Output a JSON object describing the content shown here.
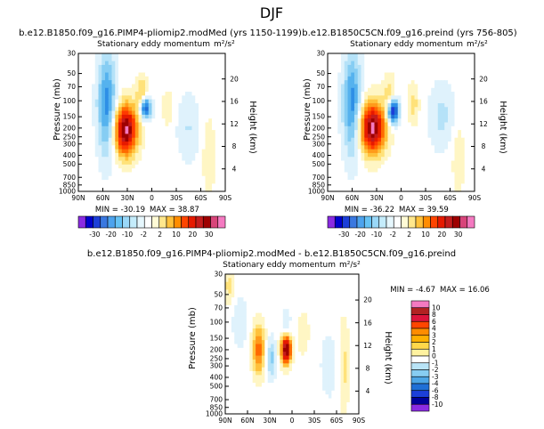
{
  "page_title": "DJF",
  "chart_data": [
    {
      "type": "heatmap",
      "id": "p1",
      "title": "b.e12.B1850.f09_g16.PIMP4-pliomip2.modMed (yrs 1150-1199)",
      "subtitle": "Stationary eddy momentum",
      "units": "m²/s²",
      "xlabel": "",
      "ylabel": "Pressure (mb)",
      "y2label": "Height (km)",
      "x_ticks": [
        "90N",
        "60N",
        "30N",
        "0",
        "30S",
        "60S",
        "90S"
      ],
      "x_range": [
        90,
        -90
      ],
      "y_ticks": [
        30,
        50,
        70,
        100,
        150,
        200,
        250,
        300,
        400,
        500,
        700,
        850,
        1000
      ],
      "y_range_mb": [
        1000,
        30
      ],
      "y2_ticks": [
        4,
        8,
        12,
        16,
        20
      ],
      "min_label": "MIN = -30.19",
      "max_label": "MAX = 38.87",
      "min": -30.19,
      "max": 38.87,
      "levels": [
        -30,
        -20,
        -10,
        -2,
        2,
        10,
        20,
        30
      ],
      "features": [
        {
          "lat": 32,
          "p": 210,
          "value": 38.9,
          "sigma_lat": 10,
          "sigma_logp": 0.45
        },
        {
          "lat": 55,
          "p": 110,
          "value": -20,
          "sigma_lat": 8,
          "sigma_logp": 0.9
        },
        {
          "lat": 8,
          "p": 120,
          "value": -30.2,
          "sigma_lat": 5,
          "sigma_logp": 0.2
        },
        {
          "lat": 12,
          "p": 90,
          "value": 12,
          "sigma_lat": 5,
          "sigma_logp": 0.35
        },
        {
          "lat": -20,
          "p": 120,
          "value": 6,
          "sigma_lat": 5,
          "sigma_logp": 0.3
        },
        {
          "lat": -45,
          "p": 200,
          "value": -6,
          "sigma_lat": 10,
          "sigma_logp": 0.6
        },
        {
          "lat": -70,
          "p": 400,
          "value": 5,
          "sigma_lat": 6,
          "sigma_logp": 0.7
        }
      ]
    },
    {
      "type": "heatmap",
      "id": "p2",
      "title": "b.e12.B1850C5CN.f09_g16.preind (yrs 756-805)",
      "subtitle": "Stationary eddy momentum",
      "units": "m²/s²",
      "xlabel": "",
      "ylabel": "Pressure (mb)",
      "y2label": "Height (km)",
      "x_ticks": [
        "90N",
        "60N",
        "30N",
        "0",
        "30S",
        "60S",
        "90S"
      ],
      "x_range": [
        90,
        -90
      ],
      "y_ticks": [
        30,
        50,
        70,
        100,
        150,
        200,
        250,
        300,
        400,
        500,
        700,
        850,
        1000
      ],
      "y_range_mb": [
        1000,
        30
      ],
      "y2_ticks": [
        4,
        8,
        12,
        16,
        20
      ],
      "min_label": "MIN = -36.22",
      "max_label": "MAX = 39.59",
      "min": -36.22,
      "max": 39.59,
      "levels": [
        -30,
        -20,
        -10,
        -2,
        2,
        10,
        20,
        30
      ],
      "features": [
        {
          "lat": 35,
          "p": 200,
          "value": 39.6,
          "sigma_lat": 11,
          "sigma_logp": 0.45
        },
        {
          "lat": 60,
          "p": 110,
          "value": -20,
          "sigma_lat": 8,
          "sigma_logp": 0.9
        },
        {
          "lat": 10,
          "p": 130,
          "value": -36.2,
          "sigma_lat": 5,
          "sigma_logp": 0.22
        },
        {
          "lat": 14,
          "p": 90,
          "value": 10,
          "sigma_lat": 5,
          "sigma_logp": 0.35
        },
        {
          "lat": -15,
          "p": 110,
          "value": 8,
          "sigma_lat": 5,
          "sigma_logp": 0.35
        },
        {
          "lat": -50,
          "p": 150,
          "value": -7,
          "sigma_lat": 12,
          "sigma_logp": 0.6
        },
        {
          "lat": -70,
          "p": 400,
          "value": 5,
          "sigma_lat": 6,
          "sigma_logp": 0.7
        }
      ]
    },
    {
      "type": "heatmap",
      "id": "p3",
      "title": "b.e12.B1850.f09_g16.PIMP4-pliomip2.modMed - b.e12.B1850C5CN.f09_g16.preind",
      "subtitle": "Stationary eddy momentum",
      "units": "m²/s²",
      "xlabel": "",
      "ylabel": "Pressure (mb)",
      "y2label": "Height (km)",
      "x_ticks": [
        "90N",
        "60N",
        "30N",
        "0",
        "30S",
        "60S",
        "90S"
      ],
      "x_range": [
        90,
        -90
      ],
      "y_ticks": [
        30,
        50,
        70,
        100,
        150,
        200,
        250,
        300,
        400,
        500,
        700,
        850,
        1000
      ],
      "y_range_mb": [
        1000,
        30
      ],
      "y2_ticks": [
        4,
        8,
        12,
        16,
        20
      ],
      "min_label": "MIN = -4.67",
      "max_label": "MAX = 16.06",
      "min": -4.67,
      "max": 16.06,
      "levels": [
        -10,
        -8,
        -6,
        -4,
        -3,
        -2,
        -1,
        0,
        1,
        2,
        3,
        4,
        6,
        8,
        10
      ],
      "features": [
        {
          "lat": 45,
          "p": 200,
          "value": 8,
          "sigma_lat": 6,
          "sigma_logp": 0.45
        },
        {
          "lat": 8,
          "p": 200,
          "value": 16.06,
          "sigma_lat": 5,
          "sigma_logp": 0.25
        },
        {
          "lat": 28,
          "p": 250,
          "value": -4.67,
          "sigma_lat": 5,
          "sigma_logp": 0.35
        },
        {
          "lat": 8,
          "p": 100,
          "value": -3,
          "sigma_lat": 4,
          "sigma_logp": 0.2
        },
        {
          "lat": 70,
          "p": 100,
          "value": -2,
          "sigma_lat": 8,
          "sigma_logp": 0.5
        },
        {
          "lat": 85,
          "p": 40,
          "value": 3,
          "sigma_lat": 5,
          "sigma_logp": 0.35
        },
        {
          "lat": -15,
          "p": 130,
          "value": 2,
          "sigma_lat": 6,
          "sigma_logp": 0.4
        },
        {
          "lat": -50,
          "p": 300,
          "value": -1.5,
          "sigma_lat": 10,
          "sigma_logp": 0.7
        },
        {
          "lat": -70,
          "p": 300,
          "value": 3,
          "sigma_lat": 5,
          "sigma_logp": 0.8
        }
      ]
    }
  ],
  "colorbars": {
    "top": {
      "labels": [
        "-30",
        "-20",
        "-10",
        "-2",
        "2",
        "10",
        "20",
        "30"
      ],
      "colors": [
        "#8a2be2",
        "#0000cd",
        "#1c3fd8",
        "#3a78e0",
        "#4da3ee",
        "#66c3f5",
        "#9ad8f8",
        "#c4ecfb",
        "#e6f7fd",
        "#ffffff",
        "#fffbd6",
        "#ffe78c",
        "#ffc13b",
        "#ff8c00",
        "#ff4500",
        "#e61a00",
        "#c41c1c",
        "#9e0000",
        "#d8457a",
        "#f47ac1"
      ]
    },
    "diff": {
      "labels": [
        "10",
        "8",
        "6",
        "4",
        "3",
        "2",
        "1",
        "0",
        "-1",
        "-2",
        "-3",
        "-4",
        "-6",
        "-8",
        "-10"
      ],
      "colors": [
        "#f47ac1",
        "#b22222",
        "#dc143c",
        "#ff4500",
        "#ff8c00",
        "#ffb000",
        "#ffd84a",
        "#fff2a0",
        "#ffffff",
        "#b9e4f7",
        "#87cdf2",
        "#4da6e6",
        "#1f6fd6",
        "#1c3fd8",
        "#00009a",
        "#8a2be2"
      ]
    }
  },
  "colors": {
    "pos_ramp": [
      "#ffffff",
      "#fff6c4",
      "#ffe27a",
      "#ffc13b",
      "#ff9a1a",
      "#ff6a00",
      "#ff3a00",
      "#e61a00",
      "#c41c1c",
      "#9e0000",
      "#f47ac1"
    ],
    "neg_ramp": [
      "#ffffff",
      "#dff2fc",
      "#b5e2f8",
      "#86cdf3",
      "#55b2ee",
      "#2e8fe6",
      "#1f6fd6",
      "#1c3fd8",
      "#0000cd",
      "#00009a",
      "#8a2be2"
    ]
  }
}
